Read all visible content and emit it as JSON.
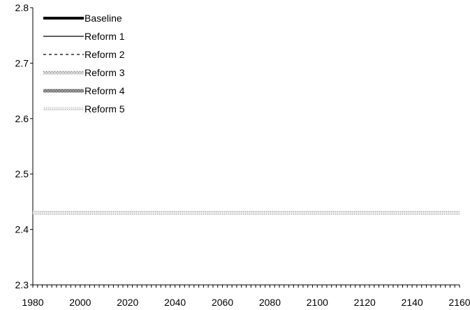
{
  "chart_data": {
    "type": "line",
    "title": "",
    "xlabel": "",
    "ylabel": "",
    "xlim": [
      1980,
      2160
    ],
    "ylim": [
      2.3,
      2.8
    ],
    "x_ticks": [
      1980,
      2000,
      2020,
      2040,
      2060,
      2080,
      2100,
      2120,
      2140,
      2160
    ],
    "x_tick_labels": [
      "1980",
      "2000",
      "2020",
      "2040",
      "2060",
      "2080",
      "2100",
      "2120",
      "2140",
      "2160"
    ],
    "y_ticks": [
      2.3,
      2.4,
      2.5,
      2.6,
      2.7,
      2.8
    ],
    "y_tick_labels": [
      "2.3",
      "2.4",
      "2.5",
      "2.6",
      "2.7",
      "2.8"
    ],
    "grid": false,
    "legend_position": "top-left",
    "x": [
      1980,
      2160
    ],
    "series": [
      {
        "name": "Baseline",
        "style": "solid-thick",
        "color": "#000000",
        "values": [
          2.43,
          2.43
        ]
      },
      {
        "name": "Reform 1",
        "style": "solid-thin",
        "color": "#000000",
        "values": [
          2.43,
          2.43
        ]
      },
      {
        "name": "Reform 2",
        "style": "dashed",
        "color": "#000000",
        "values": [
          2.43,
          2.43
        ]
      },
      {
        "name": "Reform 3",
        "style": "hatched-light",
        "color": "#9a9a9a",
        "values": [
          2.43,
          2.43
        ]
      },
      {
        "name": "Reform 4",
        "style": "hatched-dark",
        "color": "#6e6e6e",
        "values": [
          2.43,
          2.43
        ]
      },
      {
        "name": "Reform 5",
        "style": "dotted-light",
        "color": "#b4b4b4",
        "values": [
          2.43,
          2.43
        ]
      }
    ]
  }
}
